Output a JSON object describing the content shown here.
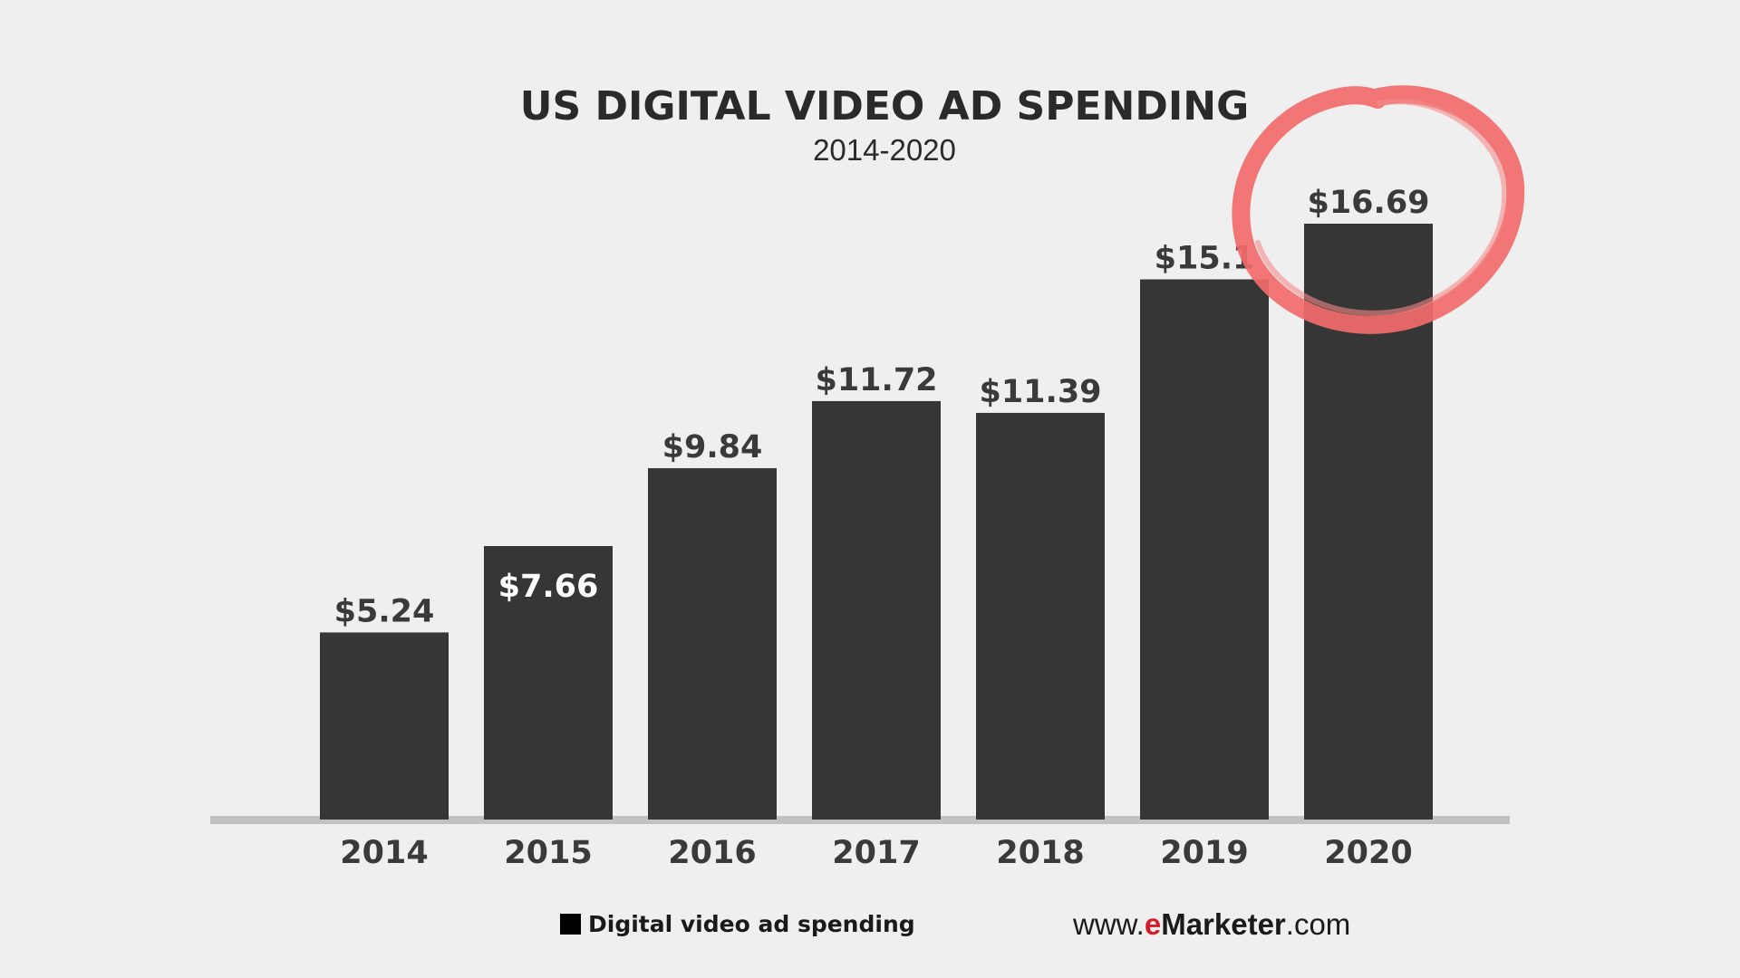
{
  "chart_data": {
    "type": "bar",
    "title": "US DIGITAL VIDEO AD SPENDING",
    "subtitle": "2014-2020",
    "categories": [
      "2014",
      "2015",
      "2016",
      "2017",
      "2018",
      "2019",
      "2020"
    ],
    "values": [
      5.24,
      7.66,
      9.84,
      11.72,
      11.39,
      15.13,
      16.69
    ],
    "data_labels": [
      "$5.24",
      "$7.66",
      "$9.84",
      "$11.72",
      "$11.39",
      "$15.1",
      "$16.69"
    ],
    "label_inside": [
      false,
      true,
      false,
      false,
      false,
      false,
      false
    ],
    "ylim": [
      0,
      16.69
    ],
    "grid": false,
    "xlabel": "",
    "ylabel": "",
    "legend": {
      "position": "bottom",
      "entries": [
        {
          "name": "Digital video ad spending",
          "color": "#000000"
        }
      ]
    },
    "highlight": {
      "category": "2020",
      "shape": "circle",
      "color": "#f26b6b"
    },
    "colors": {
      "bar": "#363636",
      "background": "#efefef",
      "baseline": "#c2c2c2",
      "label_dark": "#3a3a3a",
      "label_light": "#ffffff"
    }
  },
  "source": {
    "prefix": "www.",
    "brand_e": "e",
    "brand_rest": "Marketer",
    "suffix": ".com",
    "brand_color": "#d71e28"
  }
}
